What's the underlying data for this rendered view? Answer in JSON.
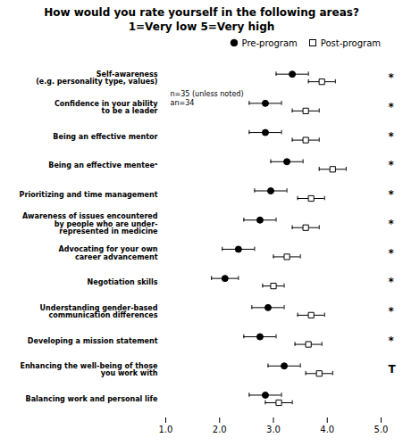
{
  "chart_data": {
    "type": "dot",
    "orientation": "horizontal",
    "title": "How would you rate yourself in the following areas?",
    "subtitle": "1=Very low   5=Very high",
    "annotations": [
      "n=35 (unless noted)",
      "an=34"
    ],
    "categories": [
      "Self-awareness\n(e.g. personality type, values)",
      "Confidence in your ability\nto be a leader",
      "Being an effective mentor",
      "Being an effective menteeᵃ",
      "Prioritizing and time management",
      "Awareness of issues encountered\nby people who are under-\nrepresented in medicine",
      "Advocating for your own\ncareer advancement",
      "Negotiation skills",
      "Understanding gender-based\ncommunication differences",
      "Developing a mission statement",
      "Enhancing the well-being of those\nyou work with",
      "Balancing work and personal life"
    ],
    "series": [
      {
        "name": "Pre-program",
        "color": "black",
        "marker": "circle-filled",
        "values": [
          3.35,
          2.85,
          2.85,
          3.25,
          2.95,
          2.75,
          2.35,
          2.1,
          2.9,
          2.75,
          3.2,
          2.85
        ],
        "ci_lo": [
          3.05,
          2.55,
          2.55,
          2.95,
          2.65,
          2.45,
          2.05,
          1.85,
          2.6,
          2.45,
          2.9,
          2.55
        ],
        "ci_hi": [
          3.65,
          3.15,
          3.15,
          3.55,
          3.25,
          3.05,
          2.65,
          2.35,
          3.2,
          3.05,
          3.5,
          3.15
        ]
      },
      {
        "name": "Post-program",
        "color": "black",
        "marker": "square-open",
        "values": [
          3.9,
          3.6,
          3.6,
          4.1,
          3.7,
          3.6,
          3.25,
          3.0,
          3.7,
          3.65,
          3.85,
          3.1
        ],
        "ci_lo": [
          3.65,
          3.35,
          3.35,
          3.85,
          3.45,
          3.35,
          3.0,
          2.8,
          3.45,
          3.4,
          3.6,
          2.85
        ],
        "ci_hi": [
          4.15,
          3.85,
          3.85,
          4.35,
          3.95,
          3.85,
          3.5,
          3.2,
          3.95,
          3.9,
          4.1,
          3.35
        ]
      }
    ],
    "significance": [
      "*",
      "*",
      "*",
      "*",
      "*",
      "*",
      "*",
      "*",
      "*",
      "*",
      "T",
      null
    ],
    "xlim": [
      1,
      5
    ],
    "xticks": [
      1,
      2,
      3,
      4,
      5
    ],
    "legend": "upper right"
  }
}
